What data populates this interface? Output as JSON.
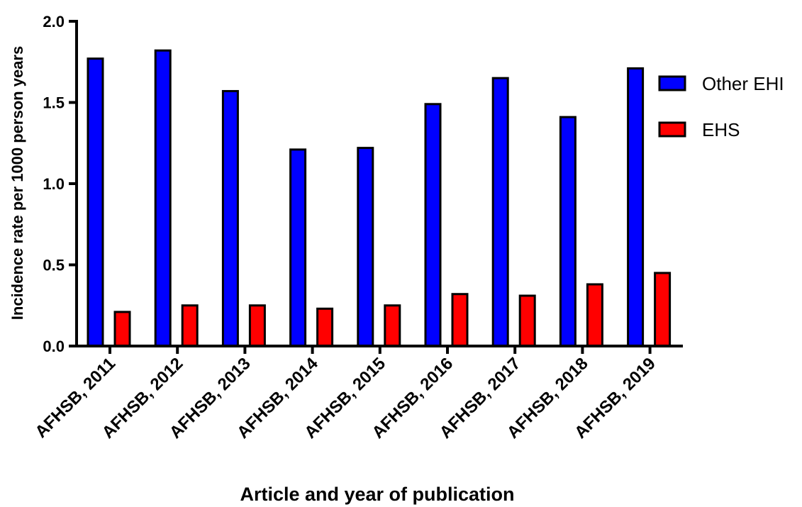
{
  "chart_data": {
    "type": "bar",
    "title": "",
    "xlabel": "Article and year of publication",
    "ylabel": "Incidence rate per 1000 person years",
    "ylim": [
      0,
      2.0
    ],
    "yticks": [
      0.0,
      0.5,
      1.0,
      1.5,
      2.0
    ],
    "ytick_labels": [
      "0.0",
      "0.5",
      "1.0",
      "1.5",
      "2.0"
    ],
    "categories": [
      "AFHSB, 2011",
      "AFHSB, 2012",
      "AFHSB, 2013",
      "AFHSB, 2014",
      "AFHSB, 2015",
      "AFHSB, 2016",
      "AFHSB, 2017",
      "AFHSB, 2018",
      "AFHSB, 2019"
    ],
    "series": [
      {
        "name": "Other EHI",
        "color": "#0000ff",
        "values": [
          1.77,
          1.82,
          1.57,
          1.21,
          1.22,
          1.49,
          1.65,
          1.41,
          1.71
        ]
      },
      {
        "name": "EHS",
        "color": "#ff0000",
        "values": [
          0.21,
          0.25,
          0.25,
          0.23,
          0.25,
          0.32,
          0.31,
          0.38,
          0.45
        ]
      }
    ],
    "grid": false,
    "legend_position": "right"
  }
}
